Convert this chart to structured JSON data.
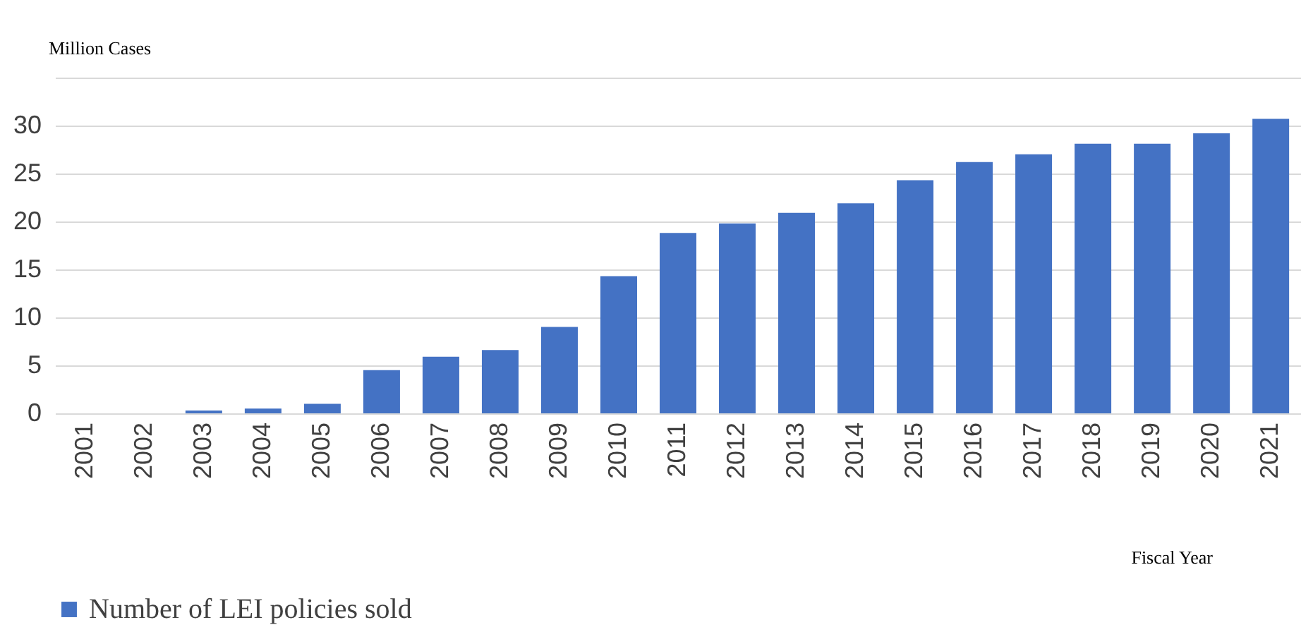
{
  "chart_data": {
    "type": "bar",
    "ylabel": "Million Cases",
    "xlabel": "Fiscal Year",
    "categories": [
      "2001",
      "2002",
      "2003",
      "2004",
      "2005",
      "2006",
      "2007",
      "2008",
      "2009",
      "2010",
      "2011",
      "2012",
      "2013",
      "2014",
      "2015",
      "2016",
      "2017",
      "2018",
      "2019",
      "2020",
      "2021"
    ],
    "series": [
      {
        "name": "Number of LEI policies sold",
        "color": "#4472c4",
        "values": [
          0,
          0,
          0.3,
          0.5,
          1.0,
          4.5,
          5.9,
          6.6,
          9.0,
          14.3,
          18.8,
          19.8,
          20.9,
          21.9,
          24.3,
          26.2,
          27.0,
          28.1,
          28.1,
          29.2,
          30.7
        ]
      }
    ],
    "ylim": [
      0,
      35
    ],
    "yticks": [
      0,
      5,
      10,
      15,
      20,
      25,
      30,
      {
        "value": 35,
        "label": null
      }
    ],
    "grid": "y",
    "legend": "bottom"
  }
}
